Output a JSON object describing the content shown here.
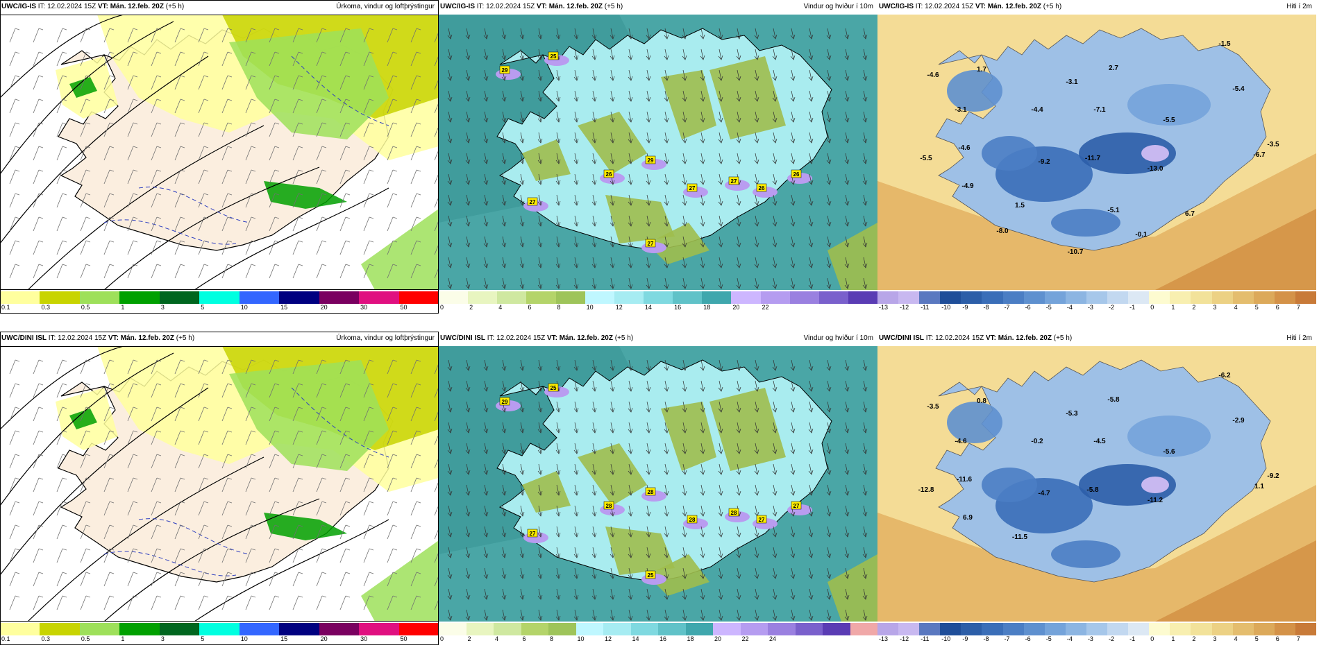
{
  "panels": [
    {
      "header_model": "UWC/IG-IS",
      "header_it": " IT: 12.02.2024 15Z ",
      "header_vt_label": "VT:",
      "header_vt": " Mán. 12.feb. 20Z",
      "header_lead": " (+5 h)",
      "title": "Úrkoma, vindur og loftþrýstingur",
      "scale_colors": [
        "#ffff9e",
        "#c8d400",
        "#9ee05a",
        "#00a000",
        "#00661f",
        "#00ffe0",
        "#3366ff",
        "#000080",
        "#7a0060",
        "#e01080",
        "#ff0000"
      ],
      "ticks": [
        "0.1",
        "0.3",
        "0.5",
        "1",
        "3",
        "5",
        "10",
        "15",
        "20",
        "30",
        "50"
      ],
      "kind": "precip"
    },
    {
      "header_model": "UWC/IG-IS",
      "header_it": " IT: 12.02.2024 15Z ",
      "header_vt_label": "VT:",
      "header_vt": " Mán. 12.feb. 20Z",
      "header_lead": " (+5 h)",
      "title": "Vindur og hviður í 10m",
      "scale_colors": [
        "#fbfde8",
        "#e8f5c0",
        "#cfe8a0",
        "#b4d46a",
        "#9ec45a",
        "#bff7ff",
        "#a6ecf2",
        "#7fd9e0",
        "#60c2c8",
        "#3fa7ad",
        "#cdb6ff",
        "#b59cf0",
        "#9a80e0",
        "#7a60cc",
        "#5a3cb4"
      ],
      "ticks": [
        "0",
        "2",
        "4",
        "6",
        "8",
        "10",
        "12",
        "14",
        "16",
        "18",
        "20",
        "22"
      ],
      "kind": "wind",
      "gust_labels": [
        "29",
        "25",
        "26",
        "29",
        "27",
        "27",
        "26",
        "26",
        "27",
        "27"
      ]
    },
    {
      "header_model": "UWC/IG-IS",
      "header_it": " IT: 12.02.2024 15Z ",
      "header_vt_label": "VT:",
      "header_vt": " Mán. 12.feb. 20Z",
      "header_lead": " (+5 h)",
      "title": "Hiti í 2m",
      "scale_colors": [
        "#b8a6e8",
        "#c8b8f0",
        "#5a78c0",
        "#1f4e99",
        "#2c5ea8",
        "#3a6eb8",
        "#4b7ec4",
        "#5e90cf",
        "#74a3da",
        "#8cb5e2",
        "#a6c7ea",
        "#c2d8f0",
        "#dce8f4",
        "#fdfbd0",
        "#f8efb0",
        "#f2e29a",
        "#ecd184",
        "#e4bd6e",
        "#dca95a",
        "#d49248",
        "#c87a38"
      ],
      "ticks": [
        "-13",
        "-12",
        "-11",
        "-10",
        "-9",
        "-8",
        "-7",
        "-6",
        "-5",
        "-4",
        "-3",
        "-2",
        "-1",
        "0",
        "1",
        "2",
        "3",
        "4",
        "5",
        "6",
        "7"
      ],
      "kind": "temp",
      "temp_labels": [
        "-1.5",
        "-4.6",
        "1.7",
        "2.7",
        "-3.1",
        "-5.4",
        "-3.1",
        "-4.4",
        "-7.1",
        "-5.5",
        "-3.5",
        "-4.6",
        "-5.5",
        "-9.2",
        "-11.7",
        "-6.7",
        "-13.0",
        "-4.9",
        "1.5",
        "-5.1",
        "6.7",
        "-8.0",
        "-0.1",
        "-10.7"
      ]
    },
    {
      "header_model": "UWC/DINI ISL",
      "header_it": " IT: 12.02.2024 15Z ",
      "header_vt_label": "VT:",
      "header_vt": " Mán. 12.feb. 20Z",
      "header_lead": " (+5 h)",
      "title": "Úrkoma, vindur og loftþrýstingur",
      "scale_colors": [
        "#ffff9e",
        "#c8d400",
        "#9ee05a",
        "#00a000",
        "#00661f",
        "#00ffe0",
        "#3366ff",
        "#000080",
        "#7a0060",
        "#e01080",
        "#ff0000"
      ],
      "ticks": [
        "0.1",
        "0.3",
        "0.5",
        "1",
        "3",
        "5",
        "10",
        "15",
        "20",
        "30",
        "50"
      ],
      "kind": "precip"
    },
    {
      "header_model": "UWC/DINI ISL",
      "header_it": " IT: 12.02.2024 15Z ",
      "header_vt_label": "VT:",
      "header_vt": " Mán. 12.feb. 20Z",
      "header_lead": " (+5 h)",
      "title": "Vindur og hviður í 10m",
      "scale_colors": [
        "#fbfde8",
        "#e8f5c0",
        "#cfe8a0",
        "#b4d46a",
        "#9ec45a",
        "#bff7ff",
        "#a6ecf2",
        "#7fd9e0",
        "#60c2c8",
        "#3fa7ad",
        "#cdb6ff",
        "#b59cf0",
        "#9a80e0",
        "#7a60cc",
        "#5a3cb4",
        "#f0a8a8"
      ],
      "ticks": [
        "0",
        "2",
        "4",
        "6",
        "8",
        "10",
        "12",
        "14",
        "16",
        "18",
        "20",
        "22",
        "24"
      ],
      "kind": "wind",
      "gust_labels": [
        "29",
        "25",
        "28",
        "28",
        "28",
        "28",
        "27",
        "27",
        "27",
        "25"
      ]
    },
    {
      "header_model": "UWC/DINI ISL",
      "header_it": " IT: 12.02.2024 15Z ",
      "header_vt_label": "VT:",
      "header_vt": " Mán. 12.feb. 20Z",
      "header_lead": " (+5 h)",
      "title": "Hiti í 2m",
      "scale_colors": [
        "#b8a6e8",
        "#c8b8f0",
        "#5a78c0",
        "#1f4e99",
        "#2c5ea8",
        "#3a6eb8",
        "#4b7ec4",
        "#5e90cf",
        "#74a3da",
        "#8cb5e2",
        "#a6c7ea",
        "#c2d8f0",
        "#dce8f4",
        "#fdfbd0",
        "#f8efb0",
        "#f2e29a",
        "#ecd184",
        "#e4bd6e",
        "#dca95a",
        "#d49248",
        "#c87a38"
      ],
      "ticks": [
        "-13",
        "-12",
        "-11",
        "-10",
        "-9",
        "-8",
        "-7",
        "-6",
        "-5",
        "-4",
        "-3",
        "-2",
        "-1",
        "0",
        "1",
        "2",
        "3",
        "4",
        "5",
        "6",
        "7"
      ],
      "kind": "temp",
      "temp_labels": [
        "-6.2",
        "-3.5",
        "0.8",
        "-5.8",
        "-5.3",
        "-2.9",
        "-4.6",
        "-0.2",
        "-4.5",
        "-5.6",
        "-9.2",
        "-11.6",
        "-12.8",
        "-4.7",
        "-5.8",
        "1.1",
        "-11.2",
        "6.9",
        "-11.5"
      ]
    }
  ]
}
